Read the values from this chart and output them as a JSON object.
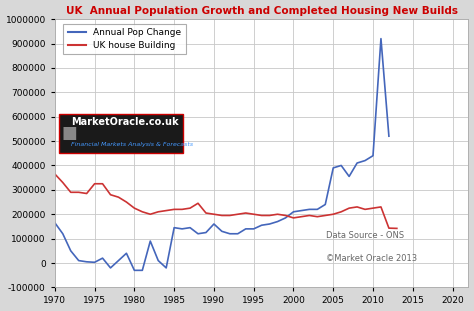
{
  "title": "UK  Annual Population Growth and Completed Housing New Builds",
  "title_color": "#cc0000",
  "legend_labels": [
    "Annual Pop Change",
    "UK house Building"
  ],
  "legend_colors": [
    "#4466bb",
    "#cc3333"
  ],
  "xlabel": "",
  "ylabel": "",
  "ylim": [
    -100000,
    1000000
  ],
  "xlim": [
    1970,
    2022
  ],
  "yticks": [
    -100000,
    0,
    100000,
    200000,
    300000,
    400000,
    500000,
    600000,
    700000,
    800000,
    900000,
    1000000
  ],
  "xticks": [
    1970,
    1975,
    1980,
    1985,
    1990,
    1995,
    2000,
    2005,
    2010,
    2015,
    2020
  ],
  "bg_color": "#d8d8d8",
  "plot_bg_color": "#ffffff",
  "grid_color": "#c8c8c8",
  "annotation1": "Data Source - ONS",
  "annotation2": "©Market Oracle 2013",
  "watermark_text1": "MarketOracle.co.uk",
  "watermark_text2": "Financial Markets Analysis & Forecasts",
  "pop_years": [
    1970,
    1971,
    1972,
    1973,
    1974,
    1975,
    1976,
    1977,
    1978,
    1979,
    1980,
    1981,
    1982,
    1983,
    1984,
    1985,
    1986,
    1987,
    1988,
    1989,
    1990,
    1991,
    1992,
    1993,
    1994,
    1995,
    1996,
    1997,
    1998,
    1999,
    2000,
    2001,
    2002,
    2003,
    2004,
    2005,
    2006,
    2007,
    2008,
    2009,
    2010,
    2011,
    2012
  ],
  "pop_values": [
    165000,
    120000,
    50000,
    10000,
    5000,
    3000,
    20000,
    -20000,
    10000,
    40000,
    -30000,
    -30000,
    90000,
    10000,
    -20000,
    145000,
    140000,
    145000,
    120000,
    125000,
    160000,
    130000,
    120000,
    120000,
    140000,
    140000,
    155000,
    160000,
    170000,
    185000,
    210000,
    215000,
    220000,
    220000,
    240000,
    390000,
    400000,
    355000,
    410000,
    420000,
    440000,
    920000,
    520000
  ],
  "house_years": [
    1970,
    1971,
    1972,
    1973,
    1974,
    1975,
    1976,
    1977,
    1978,
    1979,
    1980,
    1981,
    1982,
    1983,
    1984,
    1985,
    1986,
    1987,
    1988,
    1989,
    1990,
    1991,
    1992,
    1993,
    1994,
    1995,
    1996,
    1997,
    1998,
    1999,
    2000,
    2001,
    2002,
    2003,
    2004,
    2005,
    2006,
    2007,
    2008,
    2009,
    2010,
    2011,
    2012,
    2013
  ],
  "house_values": [
    365000,
    330000,
    290000,
    290000,
    285000,
    325000,
    325000,
    280000,
    270000,
    250000,
    225000,
    210000,
    200000,
    210000,
    215000,
    220000,
    220000,
    225000,
    245000,
    205000,
    200000,
    195000,
    195000,
    200000,
    205000,
    200000,
    195000,
    195000,
    200000,
    195000,
    185000,
    190000,
    195000,
    190000,
    195000,
    200000,
    210000,
    225000,
    230000,
    220000,
    225000,
    230000,
    143000,
    142000
  ]
}
